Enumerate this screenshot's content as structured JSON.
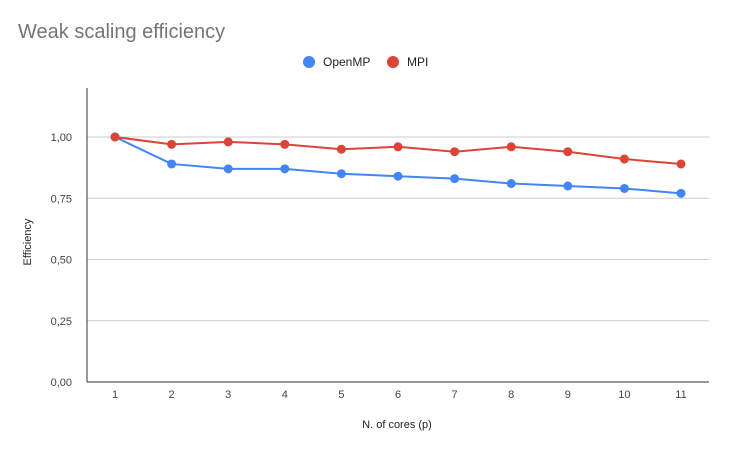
{
  "chart_data": {
    "type": "line",
    "title": "Weak scaling efficiency",
    "xlabel": "N. of cores (p)",
    "ylabel": "Efficiency",
    "categories": [
      "1",
      "2",
      "3",
      "4",
      "5",
      "6",
      "7",
      "8",
      "9",
      "10",
      "11"
    ],
    "ylim": [
      0,
      1.2
    ],
    "yticks": [
      "0,00",
      "0,25",
      "0,50",
      "0,75",
      "1,00"
    ],
    "ytick_values": [
      0,
      0.25,
      0.5,
      0.75,
      1.0
    ],
    "grid": true,
    "legend_position": "top",
    "series": [
      {
        "name": "OpenMP",
        "color": "#4285f4",
        "values": [
          1.0,
          0.89,
          0.87,
          0.87,
          0.85,
          0.84,
          0.83,
          0.81,
          0.8,
          0.79,
          0.77
        ]
      },
      {
        "name": "MPI",
        "color": "#db4437",
        "values": [
          1.0,
          0.97,
          0.98,
          0.97,
          0.95,
          0.96,
          0.94,
          0.96,
          0.94,
          0.91,
          0.89
        ]
      }
    ]
  }
}
